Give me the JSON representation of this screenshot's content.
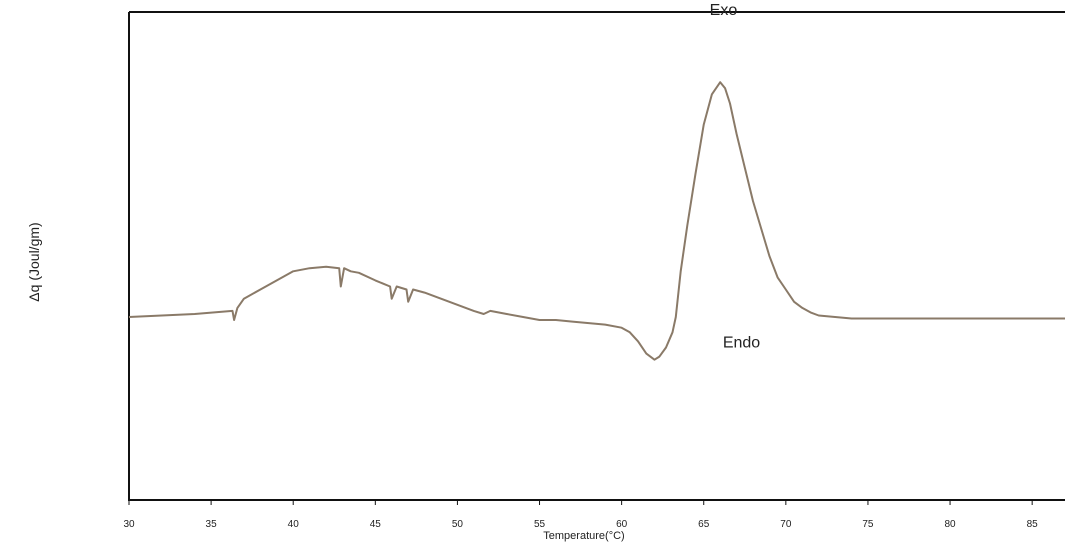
{
  "chart_data": {
    "type": "line",
    "title": "",
    "xlabel": "Temperature(°C)",
    "ylabel": "Δq (Joul/gm)",
    "xlim": [
      30,
      87
    ],
    "ylim": [
      -6,
      10
    ],
    "xticks": [
      30,
      35,
      40,
      45,
      50,
      55,
      60,
      65,
      70,
      75,
      80,
      85
    ],
    "grid": false,
    "annotations": [
      {
        "text": "Exo",
        "x": 66.2,
        "y": 9.9
      },
      {
        "text": "Endo",
        "x": 67.3,
        "y": -1.0
      }
    ],
    "series": [
      {
        "color": "#8a7a68",
        "x": [
          30,
          34,
          36.3,
          36.4,
          36.6,
          37,
          38,
          39,
          40,
          41,
          42,
          42.8,
          42.9,
          43.1,
          43.5,
          44,
          45,
          45.9,
          46,
          46.3,
          46.9,
          47,
          47.3,
          48,
          49,
          50,
          51,
          51.6,
          52,
          53,
          54,
          55,
          56,
          57,
          58,
          59,
          60,
          60.5,
          61,
          61.5,
          62,
          62.3,
          62.7,
          63.1,
          63.3,
          63.6,
          64,
          64.5,
          65,
          65.5,
          66,
          66.3,
          66.6,
          67,
          67.5,
          68,
          68.5,
          69,
          69.5,
          70,
          70.5,
          71,
          71.5,
          72,
          73,
          74,
          75,
          76,
          80,
          85,
          87
        ],
        "y": [
          0.0,
          0.1,
          0.2,
          -0.1,
          0.3,
          0.6,
          0.9,
          1.2,
          1.5,
          1.6,
          1.65,
          1.6,
          1.0,
          1.6,
          1.5,
          1.45,
          1.2,
          1.0,
          0.6,
          1.0,
          0.9,
          0.5,
          0.9,
          0.8,
          0.6,
          0.4,
          0.2,
          0.1,
          0.2,
          0.1,
          0.0,
          -0.1,
          -0.1,
          -0.15,
          -0.2,
          -0.25,
          -0.35,
          -0.5,
          -0.8,
          -1.2,
          -1.4,
          -1.3,
          -1.0,
          -0.5,
          0.0,
          1.5,
          3.0,
          4.7,
          6.3,
          7.3,
          7.7,
          7.5,
          7.0,
          6.0,
          4.9,
          3.8,
          2.9,
          2.0,
          1.3,
          0.9,
          0.5,
          0.3,
          0.15,
          0.05,
          0.0,
          -0.05,
          -0.05,
          -0.05,
          -0.05,
          -0.05,
          -0.05
        ]
      }
    ]
  }
}
